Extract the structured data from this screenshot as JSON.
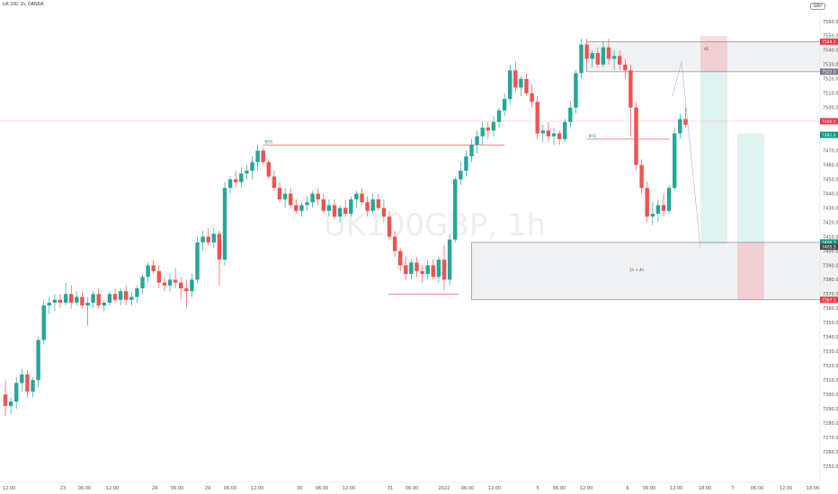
{
  "header": {
    "symbol": "UK 100, 1h, OANDA",
    "currency": "GBP"
  },
  "watermark": {
    "symbol": "UK100GBP, 1h",
    "symbol_small": "UK 100"
  },
  "chart_data": {
    "type": "candlestick",
    "ylim": [
      7240,
      7570
    ],
    "y_ticks": [
      7250.0,
      7260.0,
      7270.0,
      7280.0,
      7290.0,
      7300.0,
      7310.0,
      7320.0,
      7330.0,
      7340.0,
      7350.0,
      7360.0,
      7370.0,
      7380.0,
      7390.0,
      7400.0,
      7410.0,
      7420.0,
      7430.0,
      7440.0,
      7450.0,
      7460.0,
      7470.0,
      7480.0,
      7490.0,
      7500.0,
      7510.0,
      7520.0,
      7530.0,
      7540.0,
      7550.0,
      7560.0
    ],
    "x_labels": [
      "12:00",
      "23",
      "06:00",
      "12:00",
      "24",
      "06:00",
      "29",
      "06:00",
      "12:00",
      "30",
      "06:00",
      "12:00",
      "31",
      "06:00",
      "2022",
      "06:00",
      "12:00",
      "5",
      "06:00",
      "12:00",
      "6",
      "06:00",
      "12:00",
      "18:00",
      "7",
      "06:00",
      "12:00",
      "18:00"
    ],
    "candles": [
      [
        7300.0,
        7310.0,
        7285.0,
        7292.0
      ],
      [
        7292.0,
        7298.0,
        7286.0,
        7295.0
      ],
      [
        7295.0,
        7312.0,
        7290.0,
        7308.0
      ],
      [
        7308.0,
        7318.0,
        7302.0,
        7314.0
      ],
      [
        7314.0,
        7317.0,
        7298.0,
        7302.0
      ],
      [
        7302.0,
        7312.0,
        7298.0,
        7310.0
      ],
      [
        7310.0,
        7340.0,
        7305.0,
        7338.0
      ],
      [
        7338.0,
        7366.0,
        7335.0,
        7362.0
      ],
      [
        7362.0,
        7368.0,
        7356.0,
        7364.0
      ],
      [
        7364.0,
        7370.0,
        7358.0,
        7366.0
      ],
      [
        7366.0,
        7370.0,
        7360.0,
        7364.0
      ],
      [
        7364.0,
        7378.0,
        7362.0,
        7370.0
      ],
      [
        7370.0,
        7376.0,
        7360.0,
        7364.0
      ],
      [
        7364.0,
        7372.0,
        7362.0,
        7368.0
      ],
      [
        7368.0,
        7372.0,
        7360.0,
        7362.0
      ],
      [
        7362.0,
        7368.0,
        7348.0,
        7364.0
      ],
      [
        7364.0,
        7372.0,
        7360.0,
        7370.0
      ],
      [
        7370.0,
        7374.0,
        7360.0,
        7362.0
      ],
      [
        7362.0,
        7366.0,
        7358.0,
        7364.0
      ],
      [
        7364.0,
        7372.0,
        7362.0,
        7370.0
      ],
      [
        7370.0,
        7374.0,
        7364.0,
        7366.0
      ],
      [
        7366.0,
        7374.0,
        7362.0,
        7372.0
      ],
      [
        7372.0,
        7376.0,
        7362.0,
        7366.0
      ],
      [
        7366.0,
        7372.0,
        7362.0,
        7368.0
      ],
      [
        7368.0,
        7376.0,
        7364.0,
        7374.0
      ],
      [
        7374.0,
        7384.0,
        7370.0,
        7382.0
      ],
      [
        7382.0,
        7392.0,
        7378.0,
        7390.0
      ],
      [
        7390.0,
        7394.0,
        7384.0,
        7386.0
      ],
      [
        7386.0,
        7390.0,
        7374.0,
        7378.0
      ],
      [
        7378.0,
        7382.0,
        7372.0,
        7376.0
      ],
      [
        7376.0,
        7384.0,
        7372.0,
        7380.0
      ],
      [
        7380.0,
        7388.0,
        7374.0,
        7378.0
      ],
      [
        7378.0,
        7382.0,
        7366.0,
        7374.0
      ],
      [
        7374.0,
        7380.0,
        7360.0,
        7372.0
      ],
      [
        7372.0,
        7384.0,
        7368.0,
        7380.0
      ],
      [
        7380.0,
        7410.0,
        7378.0,
        7406.0
      ],
      [
        7406.0,
        7414.0,
        7400.0,
        7410.0
      ],
      [
        7410.0,
        7416.0,
        7404.0,
        7406.0
      ],
      [
        7406.0,
        7416.0,
        7402.0,
        7412.0
      ],
      [
        7412.0,
        7414.0,
        7376.0,
        7394.0
      ],
      [
        7394.0,
        7448.0,
        7390.0,
        7444.0
      ],
      [
        7444.0,
        7452.0,
        7440.0,
        7450.0
      ],
      [
        7450.0,
        7456.0,
        7444.0,
        7448.0
      ],
      [
        7448.0,
        7458.0,
        7444.0,
        7454.0
      ],
      [
        7454.0,
        7460.0,
        7450.0,
        7456.0
      ],
      [
        7456.0,
        7466.0,
        7450.0,
        7462.0
      ],
      [
        7462.0,
        7474.0,
        7456.0,
        7470.0
      ],
      [
        7470.0,
        7472.0,
        7460.0,
        7462.0
      ],
      [
        7462.0,
        7464.0,
        7450.0,
        7452.0
      ],
      [
        7452.0,
        7456.0,
        7442.0,
        7444.0
      ],
      [
        7444.0,
        7448.0,
        7434.0,
        7436.0
      ],
      [
        7436.0,
        7444.0,
        7430.0,
        7440.0
      ],
      [
        7440.0,
        7444.0,
        7430.0,
        7432.0
      ],
      [
        7432.0,
        7436.0,
        7426.0,
        7428.0
      ],
      [
        7428.0,
        7434.0,
        7424.0,
        7432.0
      ],
      [
        7432.0,
        7438.0,
        7428.0,
        7434.0
      ],
      [
        7434.0,
        7442.0,
        7430.0,
        7440.0
      ],
      [
        7440.0,
        7444.0,
        7432.0,
        7436.0
      ],
      [
        7436.0,
        7440.0,
        7426.0,
        7428.0
      ],
      [
        7428.0,
        7436.0,
        7424.0,
        7432.0
      ],
      [
        7432.0,
        7436.0,
        7422.0,
        7424.0
      ],
      [
        7424.0,
        7432.0,
        7420.0,
        7430.0
      ],
      [
        7430.0,
        7436.0,
        7424.0,
        7426.0
      ],
      [
        7426.0,
        7438.0,
        7424.0,
        7436.0
      ],
      [
        7436.0,
        7442.0,
        7430.0,
        7440.0
      ],
      [
        7440.0,
        7444.0,
        7432.0,
        7434.0
      ],
      [
        7434.0,
        7438.0,
        7424.0,
        7428.0
      ],
      [
        7428.0,
        7440.0,
        7426.0,
        7436.0
      ],
      [
        7436.0,
        7440.0,
        7428.0,
        7430.0
      ],
      [
        7430.0,
        7436.0,
        7420.0,
        7424.0
      ],
      [
        7424.0,
        7428.0,
        7408.0,
        7410.0
      ],
      [
        7410.0,
        7414.0,
        7396.0,
        7400.0
      ],
      [
        7400.0,
        7402.0,
        7386.0,
        7390.0
      ],
      [
        7390.0,
        7396.0,
        7380.0,
        7384.0
      ],
      [
        7384.0,
        7394.0,
        7380.0,
        7392.0
      ],
      [
        7392.0,
        7396.0,
        7382.0,
        7386.0
      ],
      [
        7386.0,
        7390.0,
        7378.0,
        7384.0
      ],
      [
        7384.0,
        7394.0,
        7380.0,
        7390.0
      ],
      [
        7390.0,
        7394.0,
        7380.0,
        7382.0
      ],
      [
        7382.0,
        7396.0,
        7378.0,
        7394.0
      ],
      [
        7394.0,
        7404.0,
        7372.0,
        7380.0
      ],
      [
        7380.0,
        7412.0,
        7376.0,
        7408.0
      ],
      [
        7408.0,
        7452.0,
        7406.0,
        7450.0
      ],
      [
        7450.0,
        7462.0,
        7446.0,
        7456.0
      ],
      [
        7456.0,
        7470.0,
        7452.0,
        7466.0
      ],
      [
        7466.0,
        7478.0,
        7462.0,
        7474.0
      ],
      [
        7474.0,
        7484.0,
        7468.0,
        7480.0
      ],
      [
        7480.0,
        7490.0,
        7474.0,
        7486.0
      ],
      [
        7486.0,
        7490.0,
        7478.0,
        7484.0
      ],
      [
        7484.0,
        7494.0,
        7480.0,
        7490.0
      ],
      [
        7490.0,
        7500.0,
        7486.0,
        7498.0
      ],
      [
        7498.0,
        7510.0,
        7494.0,
        7506.0
      ],
      [
        7506.0,
        7530.0,
        7502.0,
        7526.0
      ],
      [
        7526.0,
        7532.0,
        7510.0,
        7514.0
      ],
      [
        7514.0,
        7522.0,
        7508.0,
        7520.0
      ],
      [
        7520.0,
        7524.0,
        7508.0,
        7510.0
      ],
      [
        7510.0,
        7516.0,
        7500.0,
        7504.0
      ],
      [
        7504.0,
        7508.0,
        7478.0,
        7482.0
      ],
      [
        7482.0,
        7488.0,
        7476.0,
        7484.0
      ],
      [
        7484.0,
        7490.0,
        7476.0,
        7480.0
      ],
      [
        7480.0,
        7486.0,
        7474.0,
        7482.0
      ],
      [
        7482.0,
        7484.0,
        7474.0,
        7478.0
      ],
      [
        7478.0,
        7492.0,
        7476.0,
        7490.0
      ],
      [
        7490.0,
        7504.0,
        7486.0,
        7500.0
      ],
      [
        7500.0,
        7526.0,
        7496.0,
        7524.0
      ],
      [
        7524.0,
        7548.0,
        7520.0,
        7544.0
      ],
      [
        7544.0,
        7548.0,
        7530.0,
        7534.0
      ],
      [
        7534.0,
        7540.0,
        7528.0,
        7538.0
      ],
      [
        7538.0,
        7542.0,
        7528.0,
        7530.0
      ],
      [
        7530.0,
        7546.0,
        7528.0,
        7542.0
      ],
      [
        7542.0,
        7548.0,
        7530.0,
        7534.0
      ],
      [
        7534.0,
        7540.0,
        7526.0,
        7536.0
      ],
      [
        7536.0,
        7540.0,
        7526.0,
        7530.0
      ],
      [
        7530.0,
        7534.0,
        7520.0,
        7526.0
      ],
      [
        7526.0,
        7530.0,
        7480.0,
        7500.0
      ],
      [
        7500.0,
        7504.0,
        7456.0,
        7460.0
      ],
      [
        7460.0,
        7464.0,
        7440.0,
        7444.0
      ],
      [
        7444.0,
        7448.0,
        7420.0,
        7424.0
      ],
      [
        7424.0,
        7434.0,
        7418.0,
        7426.0
      ],
      [
        7426.0,
        7436.0,
        7420.0,
        7432.0
      ],
      [
        7432.0,
        7440.0,
        7424.0,
        7428.0
      ],
      [
        7428.0,
        7446.0,
        7426.0,
        7444.0
      ],
      [
        7444.0,
        7486.0,
        7442.0,
        7482.0
      ],
      [
        7482.0,
        7496.0,
        7478.0,
        7492.0
      ],
      [
        7492.0,
        7500.0,
        7486.0,
        7488.0
      ]
    ],
    "annotations": [
      {
        "label": "BOS",
        "x_candle": 47,
        "y": 7474.0,
        "x_end_candle": 91
      },
      {
        "label": "BOS",
        "x_candle": 106,
        "y": 7478.0,
        "x_end_candle": 121
      },
      {
        "label": "1h + 4h"
      },
      {
        "label": "40"
      }
    ],
    "zones": [
      {
        "from_candle": 106,
        "to_candle": 161,
        "y_top": 7546.0,
        "y_bottom": 7525.0
      },
      {
        "from_candle": 85,
        "to_candle": 161,
        "y_top": 7406.0,
        "y_bottom": 7366.0
      }
    ],
    "price_tags": [
      {
        "price": 7546.0,
        "label": "7544.7",
        "color": "#f23645"
      },
      {
        "price": 7525.0,
        "label": "7522.5",
        "color": "#787b86"
      },
      {
        "price": 7490.5,
        "label": "7490.5",
        "color": "#f23645"
      },
      {
        "price": 7481.0,
        "label": "7481.6",
        "color": "#089981"
      },
      {
        "price": 7406.0,
        "label": "7406.3",
        "color": "#089981"
      },
      {
        "price": 7403.0,
        "label": "7405.5",
        "color": "#4a4a4a"
      },
      {
        "price": 7366.0,
        "label": "7367.1",
        "color": "#f23645"
      }
    ],
    "grid": false,
    "up_color": "#26a69a",
    "down_color": "#ef5350"
  }
}
